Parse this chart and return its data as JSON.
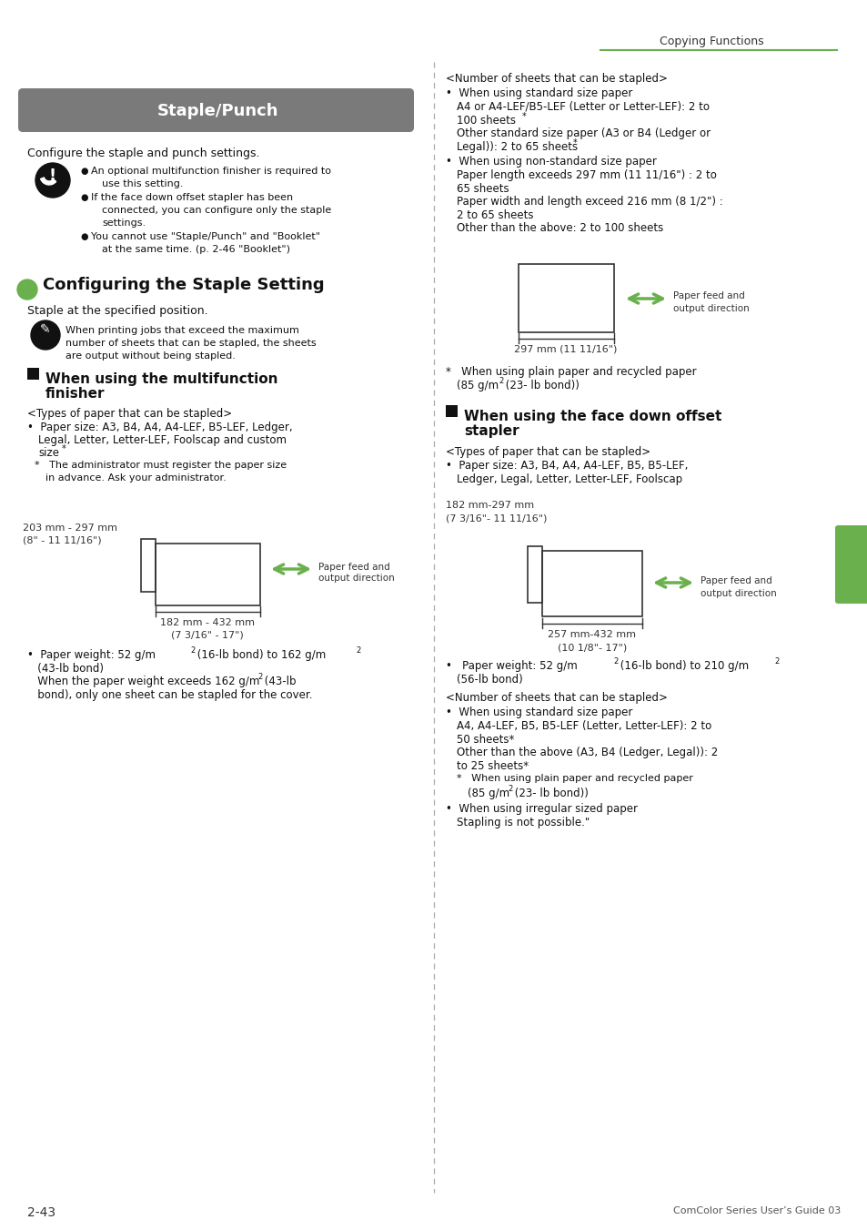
{
  "page_bg": "#ffffff",
  "header_text": "Copying Functions",
  "header_line_color": "#6ab04c",
  "title_box_color": "#7a7a7a",
  "title_text": "Staple/Punch",
  "title_text_color": "#ffffff",
  "green_color": "#6ab04c",
  "dark_color": "#111111",
  "gray_color": "#555555",
  "footer_left": "2-43",
  "footer_right": "ComColor Series User’s Guide 03"
}
